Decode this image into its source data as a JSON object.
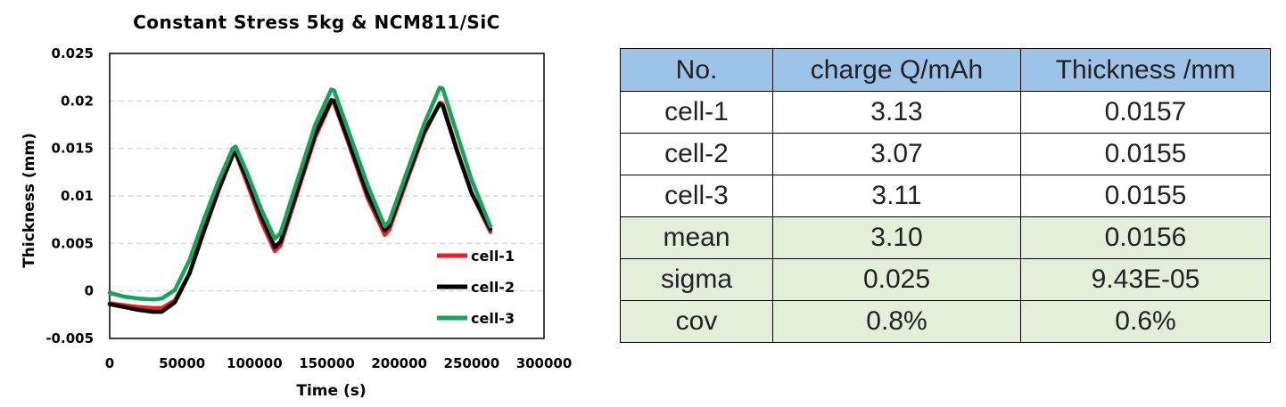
{
  "chart_data": {
    "type": "line",
    "title": "Constant Stress 5kg & NCM811/SiC",
    "xlabel": "Time (s)",
    "ylabel": "Thickness (mm)",
    "xlim": [
      0,
      300000
    ],
    "ylim": [
      -0.005,
      0.025
    ],
    "x_ticks": [
      "0",
      "50000",
      "100000",
      "150000",
      "200000",
      "250000",
      "300000"
    ],
    "y_ticks": [
      "-0.005",
      "0",
      "0.005",
      "0.01",
      "0.015",
      "0.02",
      "0.025"
    ],
    "grid": "horizontal",
    "legend_position": "bottom-right",
    "series": [
      {
        "name": "cell-1",
        "color": "#e8211f",
        "points": [
          [
            0,
            -0.0013
          ],
          [
            10000,
            -0.0015
          ],
          [
            20000,
            -0.0017
          ],
          [
            30000,
            -0.0018
          ],
          [
            36000,
            -0.0018
          ],
          [
            45000,
            -0.001
          ],
          [
            55000,
            0.0018
          ],
          [
            65000,
            0.0062
          ],
          [
            75000,
            0.0105
          ],
          [
            85000,
            0.0143
          ],
          [
            87000,
            0.0145
          ],
          [
            95000,
            0.0113
          ],
          [
            105000,
            0.0072
          ],
          [
            114000,
            0.0042
          ],
          [
            118000,
            0.0048
          ],
          [
            130000,
            0.0105
          ],
          [
            142000,
            0.0162
          ],
          [
            153000,
            0.0199
          ],
          [
            155000,
            0.0198
          ],
          [
            165000,
            0.0155
          ],
          [
            178000,
            0.0098
          ],
          [
            190000,
            0.0059
          ],
          [
            193000,
            0.0064
          ],
          [
            205000,
            0.0115
          ],
          [
            217000,
            0.0165
          ],
          [
            228000,
            0.0198
          ],
          [
            230000,
            0.0197
          ],
          [
            240000,
            0.0148
          ],
          [
            250000,
            0.0103
          ],
          [
            263000,
            0.0062
          ]
        ]
      },
      {
        "name": "cell-2",
        "color": "#000000",
        "points": [
          [
            0,
            -0.0014
          ],
          [
            10000,
            -0.0017
          ],
          [
            20000,
            -0.002
          ],
          [
            30000,
            -0.0022
          ],
          [
            36000,
            -0.0022
          ],
          [
            45000,
            -0.0012
          ],
          [
            55000,
            0.0018
          ],
          [
            65000,
            0.0063
          ],
          [
            75000,
            0.0106
          ],
          [
            85000,
            0.0143
          ],
          [
            87000,
            0.0146
          ],
          [
            95000,
            0.0117
          ],
          [
            105000,
            0.0078
          ],
          [
            114000,
            0.0046
          ],
          [
            118000,
            0.0052
          ],
          [
            130000,
            0.0108
          ],
          [
            142000,
            0.0165
          ],
          [
            153000,
            0.0201
          ],
          [
            155000,
            0.02
          ],
          [
            165000,
            0.0158
          ],
          [
            178000,
            0.0102
          ],
          [
            190000,
            0.0064
          ],
          [
            193000,
            0.0068
          ],
          [
            205000,
            0.0118
          ],
          [
            217000,
            0.0167
          ],
          [
            228000,
            0.0197
          ],
          [
            230000,
            0.0195
          ],
          [
            240000,
            0.0147
          ],
          [
            250000,
            0.0103
          ],
          [
            263000,
            0.0065
          ]
        ]
      },
      {
        "name": "cell-3",
        "color": "#18a35a",
        "points": [
          [
            0,
            -0.0002
          ],
          [
            10000,
            -0.0006
          ],
          [
            20000,
            -0.0008
          ],
          [
            30000,
            -0.0009
          ],
          [
            36000,
            -0.0008
          ],
          [
            45000,
            0.0001
          ],
          [
            55000,
            0.0032
          ],
          [
            65000,
            0.0075
          ],
          [
            75000,
            0.0115
          ],
          [
            85000,
            0.015
          ],
          [
            87000,
            0.0152
          ],
          [
            95000,
            0.0124
          ],
          [
            105000,
            0.0085
          ],
          [
            114000,
            0.0055
          ],
          [
            118000,
            0.0061
          ],
          [
            130000,
            0.0118
          ],
          [
            142000,
            0.0175
          ],
          [
            153000,
            0.0212
          ],
          [
            155000,
            0.0211
          ],
          [
            165000,
            0.0168
          ],
          [
            178000,
            0.0112
          ],
          [
            190000,
            0.0068
          ],
          [
            193000,
            0.0073
          ],
          [
            205000,
            0.0124
          ],
          [
            217000,
            0.0175
          ],
          [
            228000,
            0.0214
          ],
          [
            230000,
            0.0213
          ],
          [
            240000,
            0.0165
          ],
          [
            250000,
            0.0117
          ],
          [
            263000,
            0.0068
          ]
        ]
      }
    ]
  },
  "table": {
    "headers": [
      "No.",
      "charge Q/mAh",
      "Thickness /mm"
    ],
    "rows": [
      {
        "no": "cell-1",
        "charge": "3.13",
        "thickness": "0.0157"
      },
      {
        "no": "cell-2",
        "charge": "3.07",
        "thickness": "0.0155"
      },
      {
        "no": "cell-3",
        "charge": "3.11",
        "thickness": "0.0155"
      },
      {
        "no": "mean",
        "charge": "3.10",
        "thickness": "0.0156"
      },
      {
        "no": "sigma",
        "charge": "0.025",
        "thickness": "9.43E-05"
      },
      {
        "no": "cov",
        "charge": "0.8%",
        "thickness": "0.6%"
      }
    ],
    "header_color": "#9ec3e8",
    "summary_color": "#e4efda"
  }
}
